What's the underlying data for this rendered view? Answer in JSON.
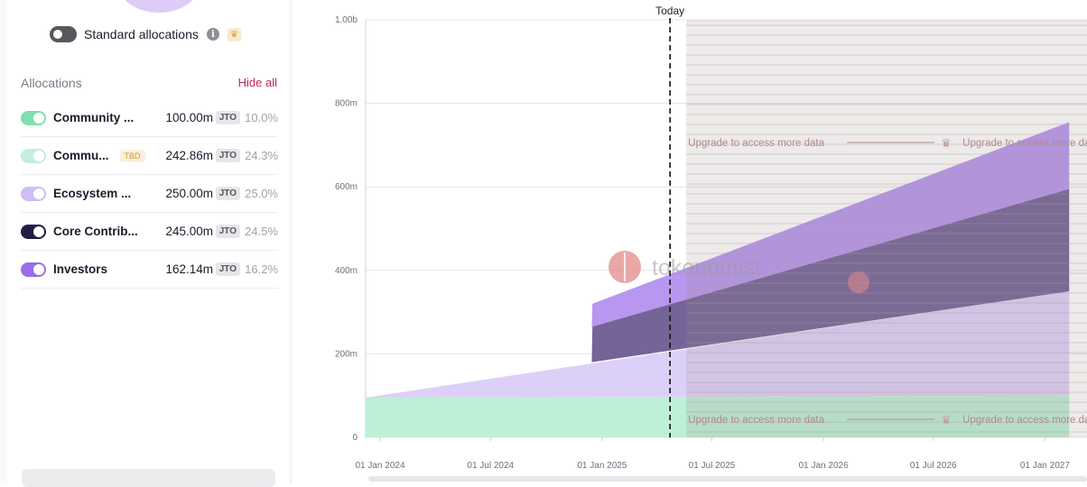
{
  "standard_allocations": {
    "label": "Standard allocations",
    "info_icon": "info-icon",
    "premium_icon": "crown-icon"
  },
  "allocations": {
    "title": "Allocations",
    "hide_all": "Hide all",
    "items": [
      {
        "name": "Community ...",
        "badge": "",
        "amount": "100.00m",
        "token": "JTO",
        "pct": "10.0%",
        "color": "#7fe0ad",
        "enabled": true
      },
      {
        "name": "Commu...",
        "badge": "TBD",
        "amount": "242.86m",
        "token": "JTO",
        "pct": "24.3%",
        "color": "#c4eedb",
        "enabled": true
      },
      {
        "name": "Ecosystem ...",
        "badge": "",
        "amount": "250.00m",
        "token": "JTO",
        "pct": "25.0%",
        "color": "#cfbdf5",
        "enabled": true
      },
      {
        "name": "Core Contrib...",
        "badge": "",
        "amount": "245.00m",
        "token": "JTO",
        "pct": "24.5%",
        "color": "#231d46",
        "enabled": true
      },
      {
        "name": "Investors",
        "badge": "",
        "amount": "162.14m",
        "token": "JTO",
        "pct": "16.2%",
        "color": "#9b6ee8",
        "enabled": true
      }
    ]
  },
  "chart_data": {
    "type": "area",
    "y_ticks": [
      "0",
      "200m",
      "400m",
      "600m",
      "800m",
      "1.00b"
    ],
    "x_ticks": [
      "01 Jan 2024",
      "01 Jul 2024",
      "01 Jan 2025",
      "01 Jul 2025",
      "01 Jan 2026",
      "01 Jul 2026",
      "01 Jan 2027"
    ],
    "ylim": [
      0,
      1000
    ],
    "today_label": "Today",
    "watermark": "tokenomist",
    "upgrade_text": "Upgrade to access more data",
    "series": [
      {
        "name": "Community ...",
        "color": "#bdf0d4",
        "points": [
          [
            "2023-12-07",
            95
          ],
          [
            "2027-02-10",
            100
          ]
        ]
      },
      {
        "name": "Ecosystem ...",
        "color": "#ddd0f8",
        "points": [
          [
            "2023-12-07",
            95
          ],
          [
            "2027-02-10",
            350
          ]
        ]
      },
      {
        "name": "Core Contrib...",
        "color": "#6e5c91",
        "points": [
          [
            "2024-12-15",
            185
          ],
          [
            "2024-12-16",
            265
          ],
          [
            "2027-02-10",
            595
          ]
        ]
      },
      {
        "name": "Investors",
        "color": "#b897f0",
        "points": [
          [
            "2024-12-15",
            265
          ],
          [
            "2024-12-16",
            320
          ],
          [
            "2027-02-10",
            755
          ]
        ]
      }
    ]
  }
}
